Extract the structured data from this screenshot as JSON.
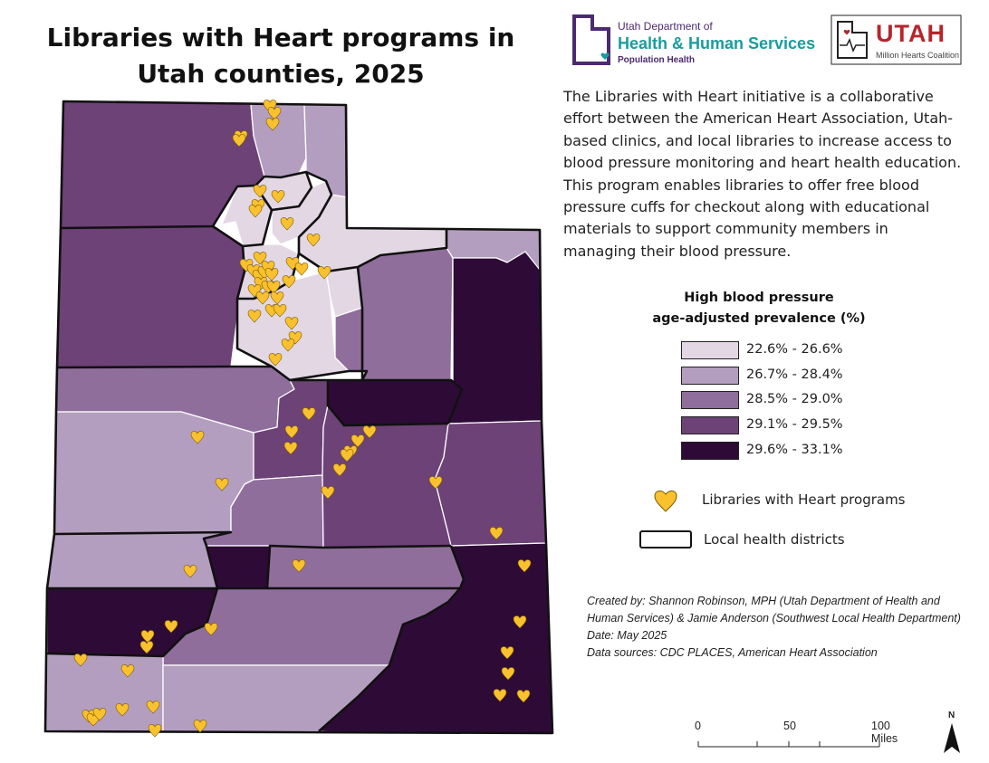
{
  "title": "Libraries with Heart programs in Utah counties, 2025",
  "logos": {
    "dhhs_line1": "Utah Department of",
    "dhhs_line2": "Health & Human Services",
    "dhhs_line3": "Population Health",
    "utah_main": "UTAH",
    "utah_sub": "Million Hearts Coalition"
  },
  "description": "The Libraries with Heart initiative is a collaborative effort between the American Heart Association, Utah-based clinics, and local libraries to increase access to blood pressure monitoring and heart health education. This program enables libraries to offer free blood pressure cuffs for checkout along with educational materials to support community members in managing their blood pressure.",
  "legend": {
    "title_line1": "High blood pressure",
    "title_line2": "age-adjusted prevalence (%)",
    "classes": [
      {
        "label": "22.6% - 26.6%",
        "color": "#e3d7e3"
      },
      {
        "label": "26.7% - 28.4%",
        "color": "#b49ebf"
      },
      {
        "label": "28.5% - 29.0%",
        "color": "#8f6e9c"
      },
      {
        "label": "29.1% - 29.5%",
        "color": "#6d4277"
      },
      {
        "label": "29.6% - 33.1%",
        "color": "#2e0b36"
      }
    ],
    "libraries_label": "Libraries with Heart programs",
    "districts_label": "Local health districts"
  },
  "credits": {
    "created_by": "Created by: Shannon Robinson, MPH (Utah Department of Health and Human Services) & Jamie Anderson (Southwest Local Health Department)",
    "date": "Date: May 2025",
    "sources": "Data sources: CDC PLACES, American Heart Association"
  },
  "scale": {
    "t0": "0",
    "t1": "50",
    "t2": "100 Miles"
  },
  "north_label": "N",
  "heart_color": "#f9c12e",
  "counties": [
    {
      "name": "Box Elder",
      "class": 3
    },
    {
      "name": "Cache",
      "class": 1
    },
    {
      "name": "Rich",
      "class": 1
    },
    {
      "name": "Weber",
      "class": 0
    },
    {
      "name": "Davis",
      "class": 0
    },
    {
      "name": "Morgan",
      "class": 0
    },
    {
      "name": "Summit",
      "class": 0
    },
    {
      "name": "Tooele",
      "class": 3
    },
    {
      "name": "Salt Lake",
      "class": 0
    },
    {
      "name": "Utah",
      "class": 0
    },
    {
      "name": "Wasatch",
      "class": 0
    },
    {
      "name": "Daggett",
      "class": 1
    },
    {
      "name": "Duchesne",
      "class": 2
    },
    {
      "name": "Uintah",
      "class": 4
    },
    {
      "name": "Juab",
      "class": 2
    },
    {
      "name": "Millard",
      "class": 1
    },
    {
      "name": "Sanpete",
      "class": 3
    },
    {
      "name": "Sevier",
      "class": 2
    },
    {
      "name": "Carbon",
      "class": 4
    },
    {
      "name": "Emery",
      "class": 3
    },
    {
      "name": "Grand",
      "class": 3
    },
    {
      "name": "Beaver",
      "class": 1
    },
    {
      "name": "Piute",
      "class": 4
    },
    {
      "name": "Wayne",
      "class": 2
    },
    {
      "name": "Iron",
      "class": 4
    },
    {
      "name": "Garfield",
      "class": 2
    },
    {
      "name": "San Juan",
      "class": 4
    },
    {
      "name": "Washington",
      "class": 1
    },
    {
      "name": "Kane",
      "class": 1
    }
  ]
}
